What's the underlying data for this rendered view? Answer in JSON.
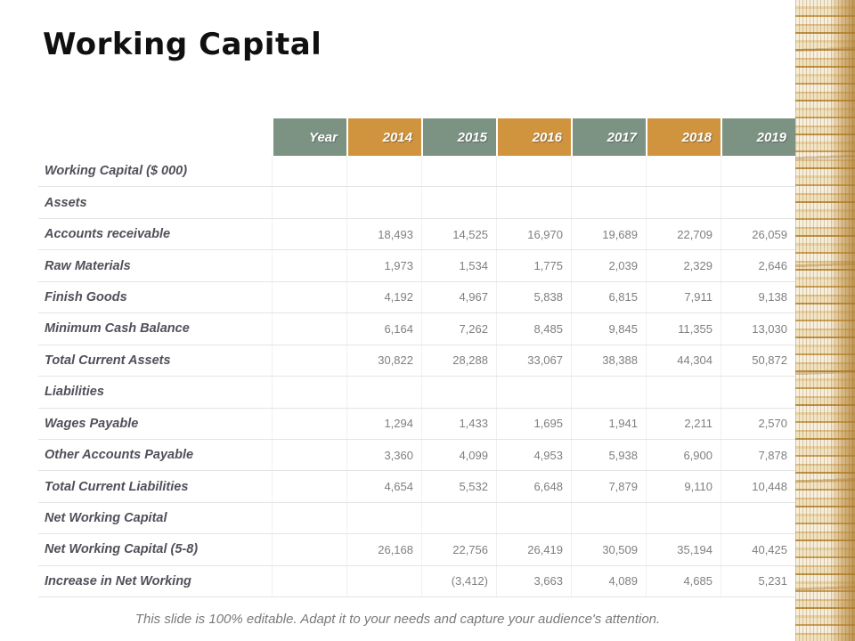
{
  "title": "Working Capital",
  "footer": "This slide is 100% editable. Adapt it to your needs and capture your audience's attention.",
  "colors": {
    "header_green": "#7C9383",
    "header_orange": "#D0943F",
    "label_text": "#50505A",
    "value_text": "#7F7F7F",
    "gridline": "#E4E4E6",
    "coin_gold": "#BD8F41"
  },
  "decor": {
    "right_image": "stacked-coins-photo"
  },
  "table": {
    "header": [
      "Year",
      "2014",
      "2015",
      "2016",
      "2017",
      "2018",
      "2019"
    ],
    "header_colors": [
      "green",
      "orange",
      "green",
      "orange",
      "green",
      "orange",
      "green"
    ],
    "rows": [
      {
        "label": "Working Capital ($ 000)",
        "values": [
          "",
          "",
          "",
          "",
          "",
          ""
        ]
      },
      {
        "label": "Assets",
        "values": [
          "",
          "",
          "",
          "",
          "",
          ""
        ]
      },
      {
        "label": "Accounts receivable",
        "values": [
          "18,493",
          "14,525",
          "16,970",
          "19,689",
          "22,709",
          "26,059"
        ]
      },
      {
        "label": "Raw Materials",
        "values": [
          "1,973",
          "1,534",
          "1,775",
          "2,039",
          "2,329",
          "2,646"
        ]
      },
      {
        "label": "Finish Goods",
        "values": [
          "4,192",
          "4,967",
          "5,838",
          "6,815",
          "7,911",
          "9,138"
        ]
      },
      {
        "label": "Minimum Cash Balance",
        "values": [
          "6,164",
          "7,262",
          "8,485",
          "9,845",
          "11,355",
          "13,030"
        ]
      },
      {
        "label": "Total Current Assets",
        "values": [
          "30,822",
          "28,288",
          "33,067",
          "38,388",
          "44,304",
          "50,872"
        ]
      },
      {
        "label": "Liabilities",
        "values": [
          "",
          "",
          "",
          "",
          "",
          ""
        ]
      },
      {
        "label": "Wages Payable",
        "values": [
          "1,294",
          "1,433",
          "1,695",
          "1,941",
          "2,211",
          "2,570"
        ]
      },
      {
        "label": "Other Accounts Payable",
        "values": [
          "3,360",
          "4,099",
          "4,953",
          "5,938",
          "6,900",
          "7,878"
        ]
      },
      {
        "label": "Total Current Liabilities",
        "values": [
          "4,654",
          "5,532",
          "6,648",
          "7,879",
          "9,110",
          "10,448"
        ]
      },
      {
        "label": "Net Working Capital",
        "values": [
          "",
          "",
          "",
          "",
          "",
          ""
        ]
      },
      {
        "label": "Net Working Capital (5-8)",
        "values": [
          "26,168",
          "22,756",
          "26,419",
          "30,509",
          "35,194",
          "40,425"
        ]
      },
      {
        "label": "Increase in Net Working",
        "values": [
          "",
          "(3,412)",
          "3,663",
          "4,089",
          "4,685",
          "5,231"
        ]
      }
    ]
  }
}
